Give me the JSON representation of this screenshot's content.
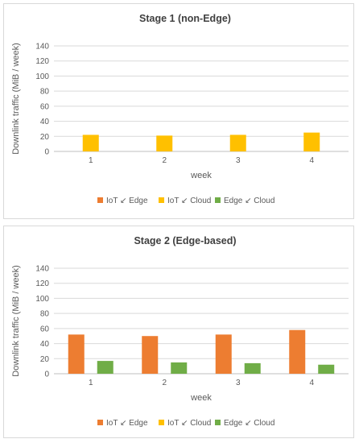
{
  "chart_data": [
    {
      "type": "bar",
      "title": "Stage 1 (non-Edge)",
      "xlabel": "week",
      "ylabel": "Downlink traffic (MiB / week)",
      "categories": [
        "1",
        "2",
        "3",
        "4"
      ],
      "ylim": [
        0,
        140
      ],
      "yticks": [
        0,
        20,
        40,
        60,
        80,
        100,
        120,
        140
      ],
      "grid": true,
      "legend_position": "bottom",
      "series": [
        {
          "name": "IoT ↙ Edge",
          "color": "#ed7d31",
          "values": [
            0,
            0,
            0,
            0
          ]
        },
        {
          "name": "IoT ↙ Cloud",
          "color": "#ffc000",
          "values": [
            22,
            21,
            22,
            25
          ]
        },
        {
          "name": "Edge ↙ Cloud",
          "color": "#70ad47",
          "values": [
            0,
            0,
            0,
            0
          ]
        }
      ]
    },
    {
      "type": "bar",
      "title": "Stage 2 (Edge-based)",
      "xlabel": "week",
      "ylabel": "Downlink traffic (MiB / week)",
      "categories": [
        "1",
        "2",
        "3",
        "4"
      ],
      "ylim": [
        0,
        140
      ],
      "yticks": [
        0,
        20,
        40,
        60,
        80,
        100,
        120,
        140
      ],
      "grid": true,
      "legend_position": "bottom",
      "series": [
        {
          "name": "IoT ↙ Edge",
          "color": "#ed7d31",
          "values": [
            52,
            50,
            52,
            58
          ]
        },
        {
          "name": "IoT ↙ Cloud",
          "color": "#ffc000",
          "values": [
            0,
            0,
            0,
            0
          ]
        },
        {
          "name": "Edge ↙ Cloud",
          "color": "#70ad47",
          "values": [
            17,
            15,
            14,
            12
          ]
        }
      ]
    }
  ]
}
